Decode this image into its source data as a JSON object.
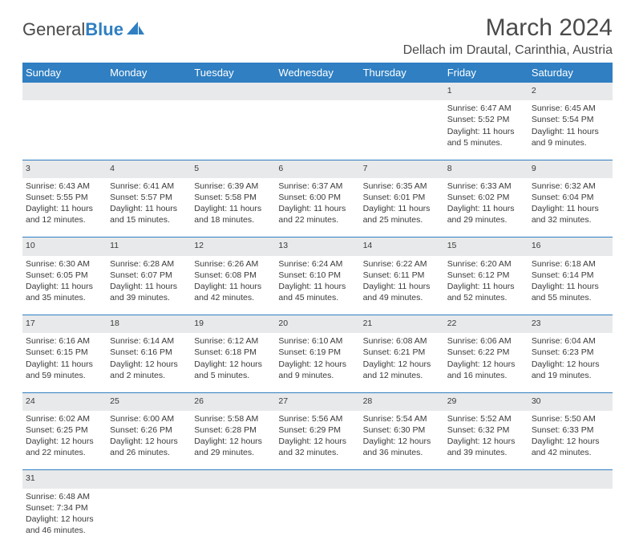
{
  "logo": {
    "text1": "General",
    "text2": "Blue"
  },
  "title": "March 2024",
  "location": "Dellach im Drautal, Carinthia, Austria",
  "colors": {
    "header_bg": "#2f7fc2",
    "header_text": "#ffffff",
    "daynum_bg": "#e8e9ea",
    "border": "#2f7fc2",
    "text": "#3a3a3a"
  },
  "weekdays": [
    "Sunday",
    "Monday",
    "Tuesday",
    "Wednesday",
    "Thursday",
    "Friday",
    "Saturday"
  ],
  "weeks": [
    [
      null,
      null,
      null,
      null,
      null,
      {
        "n": "1",
        "sr": "Sunrise: 6:47 AM",
        "ss": "Sunset: 5:52 PM",
        "dl": "Daylight: 11 hours and 5 minutes."
      },
      {
        "n": "2",
        "sr": "Sunrise: 6:45 AM",
        "ss": "Sunset: 5:54 PM",
        "dl": "Daylight: 11 hours and 9 minutes."
      }
    ],
    [
      {
        "n": "3",
        "sr": "Sunrise: 6:43 AM",
        "ss": "Sunset: 5:55 PM",
        "dl": "Daylight: 11 hours and 12 minutes."
      },
      {
        "n": "4",
        "sr": "Sunrise: 6:41 AM",
        "ss": "Sunset: 5:57 PM",
        "dl": "Daylight: 11 hours and 15 minutes."
      },
      {
        "n": "5",
        "sr": "Sunrise: 6:39 AM",
        "ss": "Sunset: 5:58 PM",
        "dl": "Daylight: 11 hours and 18 minutes."
      },
      {
        "n": "6",
        "sr": "Sunrise: 6:37 AM",
        "ss": "Sunset: 6:00 PM",
        "dl": "Daylight: 11 hours and 22 minutes."
      },
      {
        "n": "7",
        "sr": "Sunrise: 6:35 AM",
        "ss": "Sunset: 6:01 PM",
        "dl": "Daylight: 11 hours and 25 minutes."
      },
      {
        "n": "8",
        "sr": "Sunrise: 6:33 AM",
        "ss": "Sunset: 6:02 PM",
        "dl": "Daylight: 11 hours and 29 minutes."
      },
      {
        "n": "9",
        "sr": "Sunrise: 6:32 AM",
        "ss": "Sunset: 6:04 PM",
        "dl": "Daylight: 11 hours and 32 minutes."
      }
    ],
    [
      {
        "n": "10",
        "sr": "Sunrise: 6:30 AM",
        "ss": "Sunset: 6:05 PM",
        "dl": "Daylight: 11 hours and 35 minutes."
      },
      {
        "n": "11",
        "sr": "Sunrise: 6:28 AM",
        "ss": "Sunset: 6:07 PM",
        "dl": "Daylight: 11 hours and 39 minutes."
      },
      {
        "n": "12",
        "sr": "Sunrise: 6:26 AM",
        "ss": "Sunset: 6:08 PM",
        "dl": "Daylight: 11 hours and 42 minutes."
      },
      {
        "n": "13",
        "sr": "Sunrise: 6:24 AM",
        "ss": "Sunset: 6:10 PM",
        "dl": "Daylight: 11 hours and 45 minutes."
      },
      {
        "n": "14",
        "sr": "Sunrise: 6:22 AM",
        "ss": "Sunset: 6:11 PM",
        "dl": "Daylight: 11 hours and 49 minutes."
      },
      {
        "n": "15",
        "sr": "Sunrise: 6:20 AM",
        "ss": "Sunset: 6:12 PM",
        "dl": "Daylight: 11 hours and 52 minutes."
      },
      {
        "n": "16",
        "sr": "Sunrise: 6:18 AM",
        "ss": "Sunset: 6:14 PM",
        "dl": "Daylight: 11 hours and 55 minutes."
      }
    ],
    [
      {
        "n": "17",
        "sr": "Sunrise: 6:16 AM",
        "ss": "Sunset: 6:15 PM",
        "dl": "Daylight: 11 hours and 59 minutes."
      },
      {
        "n": "18",
        "sr": "Sunrise: 6:14 AM",
        "ss": "Sunset: 6:16 PM",
        "dl": "Daylight: 12 hours and 2 minutes."
      },
      {
        "n": "19",
        "sr": "Sunrise: 6:12 AM",
        "ss": "Sunset: 6:18 PM",
        "dl": "Daylight: 12 hours and 5 minutes."
      },
      {
        "n": "20",
        "sr": "Sunrise: 6:10 AM",
        "ss": "Sunset: 6:19 PM",
        "dl": "Daylight: 12 hours and 9 minutes."
      },
      {
        "n": "21",
        "sr": "Sunrise: 6:08 AM",
        "ss": "Sunset: 6:21 PM",
        "dl": "Daylight: 12 hours and 12 minutes."
      },
      {
        "n": "22",
        "sr": "Sunrise: 6:06 AM",
        "ss": "Sunset: 6:22 PM",
        "dl": "Daylight: 12 hours and 16 minutes."
      },
      {
        "n": "23",
        "sr": "Sunrise: 6:04 AM",
        "ss": "Sunset: 6:23 PM",
        "dl": "Daylight: 12 hours and 19 minutes."
      }
    ],
    [
      {
        "n": "24",
        "sr": "Sunrise: 6:02 AM",
        "ss": "Sunset: 6:25 PM",
        "dl": "Daylight: 12 hours and 22 minutes."
      },
      {
        "n": "25",
        "sr": "Sunrise: 6:00 AM",
        "ss": "Sunset: 6:26 PM",
        "dl": "Daylight: 12 hours and 26 minutes."
      },
      {
        "n": "26",
        "sr": "Sunrise: 5:58 AM",
        "ss": "Sunset: 6:28 PM",
        "dl": "Daylight: 12 hours and 29 minutes."
      },
      {
        "n": "27",
        "sr": "Sunrise: 5:56 AM",
        "ss": "Sunset: 6:29 PM",
        "dl": "Daylight: 12 hours and 32 minutes."
      },
      {
        "n": "28",
        "sr": "Sunrise: 5:54 AM",
        "ss": "Sunset: 6:30 PM",
        "dl": "Daylight: 12 hours and 36 minutes."
      },
      {
        "n": "29",
        "sr": "Sunrise: 5:52 AM",
        "ss": "Sunset: 6:32 PM",
        "dl": "Daylight: 12 hours and 39 minutes."
      },
      {
        "n": "30",
        "sr": "Sunrise: 5:50 AM",
        "ss": "Sunset: 6:33 PM",
        "dl": "Daylight: 12 hours and 42 minutes."
      }
    ],
    [
      {
        "n": "31",
        "sr": "Sunrise: 6:48 AM",
        "ss": "Sunset: 7:34 PM",
        "dl": "Daylight: 12 hours and 46 minutes."
      },
      null,
      null,
      null,
      null,
      null,
      null
    ]
  ]
}
